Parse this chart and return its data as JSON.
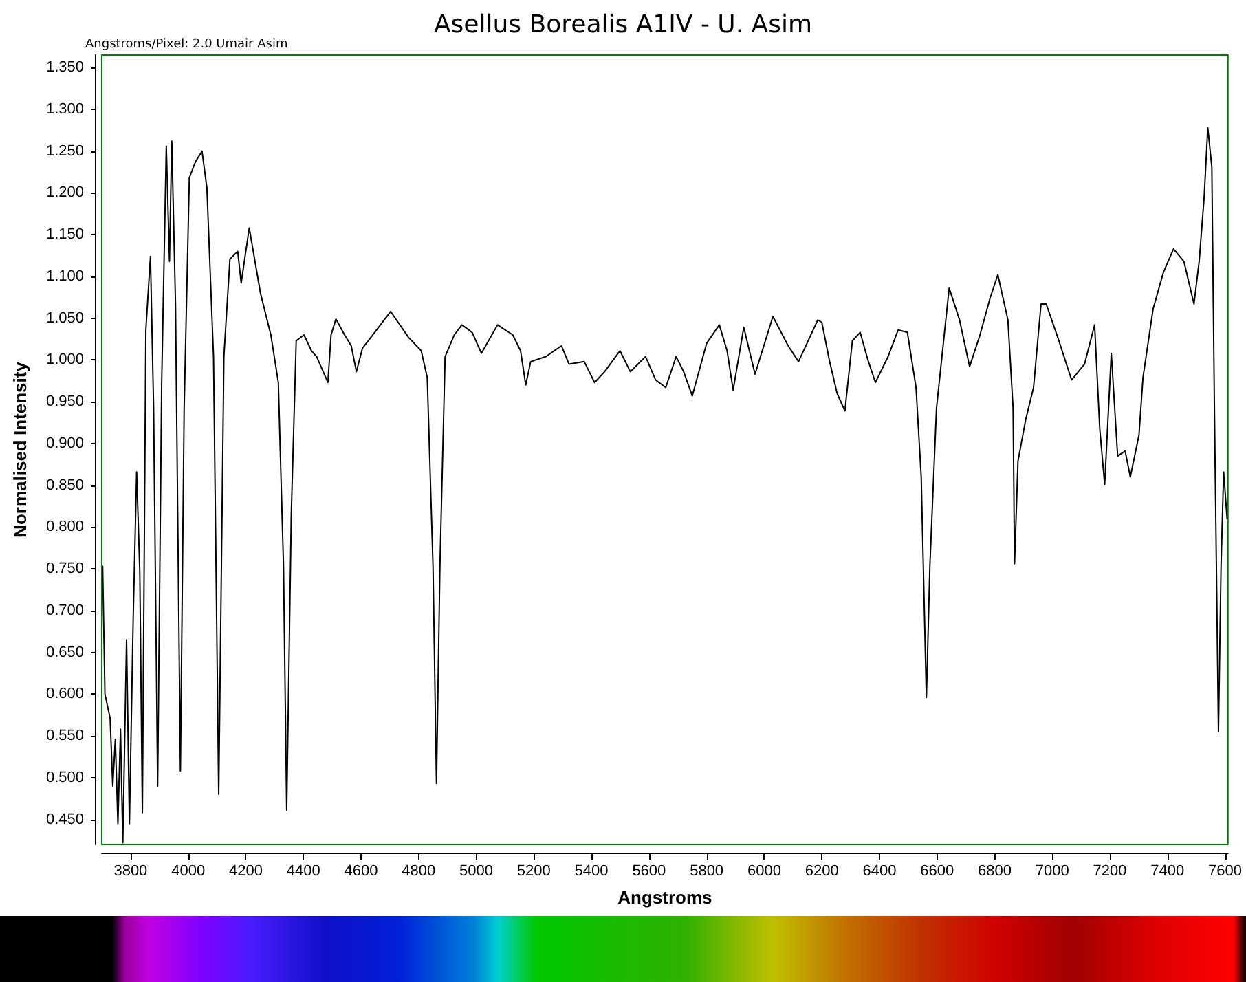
{
  "chart_data": {
    "type": "line",
    "title": "Asellus Borealis A1IV - U. Asim",
    "xlabel": "Angstroms",
    "ylabel": "Normalised Intensity",
    "annotations": [
      "Angstroms/Pixel: 2.0 Umair Asim"
    ],
    "xlim": [
      3700,
      7610
    ],
    "xticks": [
      3800,
      4000,
      4200,
      4400,
      4600,
      4800,
      5000,
      5200,
      5400,
      5600,
      5800,
      6000,
      6200,
      6400,
      6600,
      6800,
      7000,
      7200,
      7400,
      7600
    ],
    "ylim": [
      0.42,
      1.365
    ],
    "yticks": [
      {
        "value": 0.45,
        "label": "0.450"
      },
      {
        "value": 0.5,
        "label": "0.500"
      },
      {
        "value": 0.55,
        "label": "0.550"
      },
      {
        "value": 0.6,
        "label": "0.600"
      },
      {
        "value": 0.65,
        "label": "0.650"
      },
      {
        "value": 0.7,
        "label": "0.700"
      },
      {
        "value": 0.75,
        "label": "0.750"
      },
      {
        "value": 0.8,
        "label": "0.800"
      },
      {
        "value": 0.85,
        "label": "0.850"
      },
      {
        "value": 0.9,
        "label": "0.900"
      },
      {
        "value": 0.95,
        "label": "0.950"
      },
      {
        "value": 1.0,
        "label": "1.000"
      },
      {
        "value": 1.05,
        "label": "1.050"
      },
      {
        "value": 1.1,
        "label": "1.100"
      },
      {
        "value": 1.15,
        "label": "1.150"
      },
      {
        "value": 1.2,
        "label": "1.200"
      },
      {
        "value": 1.25,
        "label": "1.250"
      },
      {
        "value": 1.3,
        "label": "1.300"
      },
      {
        "value": 1.35,
        "label": "1.350"
      }
    ],
    "marker": "none",
    "line_style": "solid",
    "series": [
      {
        "color": "#000000",
        "x": [
          3703,
          3711,
          3729,
          3738,
          3747,
          3756,
          3765,
          3773,
          3786,
          3796,
          3809,
          3821,
          3832,
          3841,
          3853,
          3869,
          3880,
          3894,
          3908,
          3924,
          3935,
          3943,
          3956,
          3973,
          3986,
          4004,
          4025,
          4048,
          4065,
          4088,
          4106,
          4124,
          4145,
          4172,
          4184,
          4212,
          4251,
          4287,
          4313,
          4331,
          4342,
          4358,
          4375,
          4402,
          4428,
          4446,
          4485,
          4496,
          4513,
          4543,
          4566,
          4584,
          4605,
          4641,
          4703,
          4765,
          4809,
          4830,
          4850,
          4862,
          4874,
          4892,
          4924,
          4950,
          4986,
          5018,
          5074,
          5127,
          5154,
          5172,
          5189,
          5242,
          5296,
          5322,
          5375,
          5411,
          5446,
          5499,
          5535,
          5588,
          5623,
          5658,
          5694,
          5720,
          5750,
          5800,
          5844,
          5871,
          5892,
          5929,
          5968,
          6030,
          6083,
          6119,
          6186,
          6200,
          6227,
          6253,
          6280,
          6306,
          6333,
          6359,
          6386,
          6430,
          6465,
          6497,
          6527,
          6545,
          6563,
          6575,
          6598,
          6642,
          6678,
          6713,
          6749,
          6784,
          6811,
          6846,
          6864,
          6869,
          6881,
          6908,
          6935,
          6961,
          6979,
          7023,
          7067,
          7112,
          7147,
          7165,
          7182,
          7205,
          7227,
          7253,
          7271,
          7301,
          7315,
          7350,
          7386,
          7421,
          7457,
          7492,
          7510,
          7527,
          7540,
          7554,
          7563,
          7577,
          7586,
          7595,
          7607
        ],
        "values": [
          0.753,
          0.6,
          0.571,
          0.49,
          0.546,
          0.445,
          0.558,
          0.422,
          0.665,
          0.445,
          0.69,
          0.866,
          0.747,
          0.458,
          1.036,
          1.124,
          0.942,
          0.49,
          0.973,
          1.256,
          1.118,
          1.262,
          1.067,
          0.508,
          0.942,
          1.218,
          1.237,
          1.25,
          1.206,
          1.004,
          0.48,
          1.004,
          1.121,
          1.13,
          1.092,
          1.158,
          1.08,
          1.03,
          0.973,
          0.753,
          0.461,
          0.816,
          1.023,
          1.03,
          1.011,
          1.004,
          0.973,
          1.03,
          1.049,
          1.03,
          1.017,
          0.986,
          1.014,
          1.03,
          1.058,
          1.027,
          1.011,
          0.979,
          0.753,
          0.493,
          0.753,
          1.004,
          1.03,
          1.042,
          1.033,
          1.008,
          1.042,
          1.03,
          1.011,
          0.97,
          0.998,
          1.004,
          1.017,
          0.995,
          0.998,
          0.973,
          0.986,
          1.011,
          0.986,
          1.004,
          0.976,
          0.967,
          1.004,
          0.986,
          0.957,
          1.02,
          1.042,
          1.011,
          0.964,
          1.039,
          0.983,
          1.052,
          1.017,
          0.998,
          1.048,
          1.045,
          0.998,
          0.96,
          0.939,
          1.023,
          1.033,
          1.001,
          0.973,
          1.004,
          1.036,
          1.033,
          0.967,
          0.86,
          0.596,
          0.753,
          0.942,
          1.086,
          1.048,
          0.992,
          1.03,
          1.074,
          1.102,
          1.048,
          0.942,
          0.756,
          0.879,
          0.929,
          0.967,
          1.067,
          1.067,
          1.023,
          0.976,
          0.995,
          1.042,
          0.917,
          0.851,
          1.008,
          0.885,
          0.891,
          0.86,
          0.91,
          0.979,
          1.061,
          1.105,
          1.133,
          1.118,
          1.067,
          1.118,
          1.193,
          1.278,
          1.231,
          0.942,
          0.555,
          0.753,
          0.866,
          0.81
        ]
      }
    ]
  }
}
